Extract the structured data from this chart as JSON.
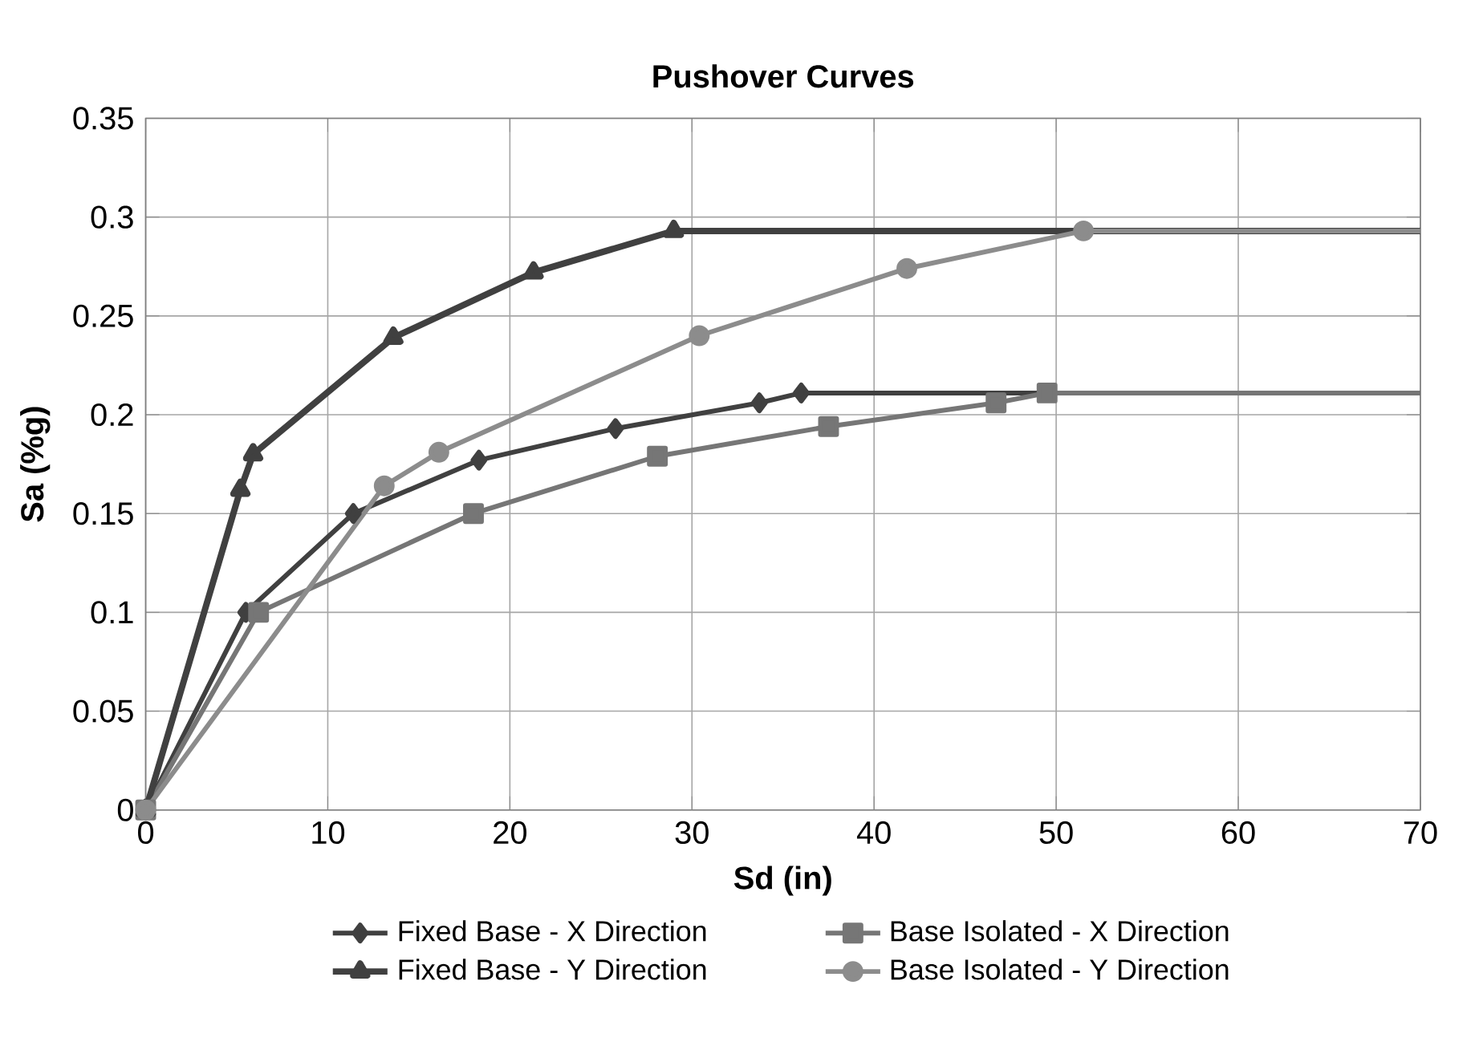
{
  "chart_data": {
    "type": "line",
    "title": "Pushover Curves",
    "xlabel": "Sd (in)",
    "ylabel": "Sa (%g)",
    "xlim": [
      0,
      70
    ],
    "xticks": [
      0,
      10,
      20,
      30,
      40,
      50,
      60,
      70
    ],
    "ylim": [
      0,
      0.35
    ],
    "yticks": [
      0,
      0.05,
      0.1,
      0.15,
      0.2,
      0.25,
      0.3,
      0.35
    ],
    "grid": true,
    "legend": "bottom",
    "line_style": "solid",
    "series": [
      {
        "name": "Fixed Base - X Direction",
        "color": "#404040",
        "marker": "diamond",
        "x": [
          0,
          5.5,
          11.4,
          18.3,
          25.8,
          33.7,
          36,
          70
        ],
        "values": [
          0,
          0.1,
          0.15,
          0.177,
          0.193,
          0.206,
          0.211,
          0.211
        ]
      },
      {
        "name": "Base Isolated - X Direction",
        "color": "#767676",
        "marker": "square",
        "x": [
          0,
          6.2,
          18,
          28.1,
          37.5,
          46.7,
          49.5,
          70
        ],
        "values": [
          0,
          0.1,
          0.15,
          0.179,
          0.194,
          0.206,
          0.211,
          0.211
        ]
      },
      {
        "name": "Fixed Base - Y Direction",
        "color": "#404040",
        "marker": "triangle",
        "x": [
          0,
          5.2,
          5.9,
          13.6,
          21.3,
          29,
          70
        ],
        "values": [
          0,
          0.162,
          0.18,
          0.239,
          0.272,
          0.293,
          0.293
        ]
      },
      {
        "name": "Base Isolated - Y Direction",
        "color": "#8c8c8c",
        "marker": "circle",
        "x": [
          0,
          13.1,
          16.1,
          30.4,
          41.8,
          51.5,
          70
        ],
        "values": [
          0,
          0.164,
          0.181,
          0.24,
          0.274,
          0.293,
          0.293
        ]
      }
    ]
  }
}
